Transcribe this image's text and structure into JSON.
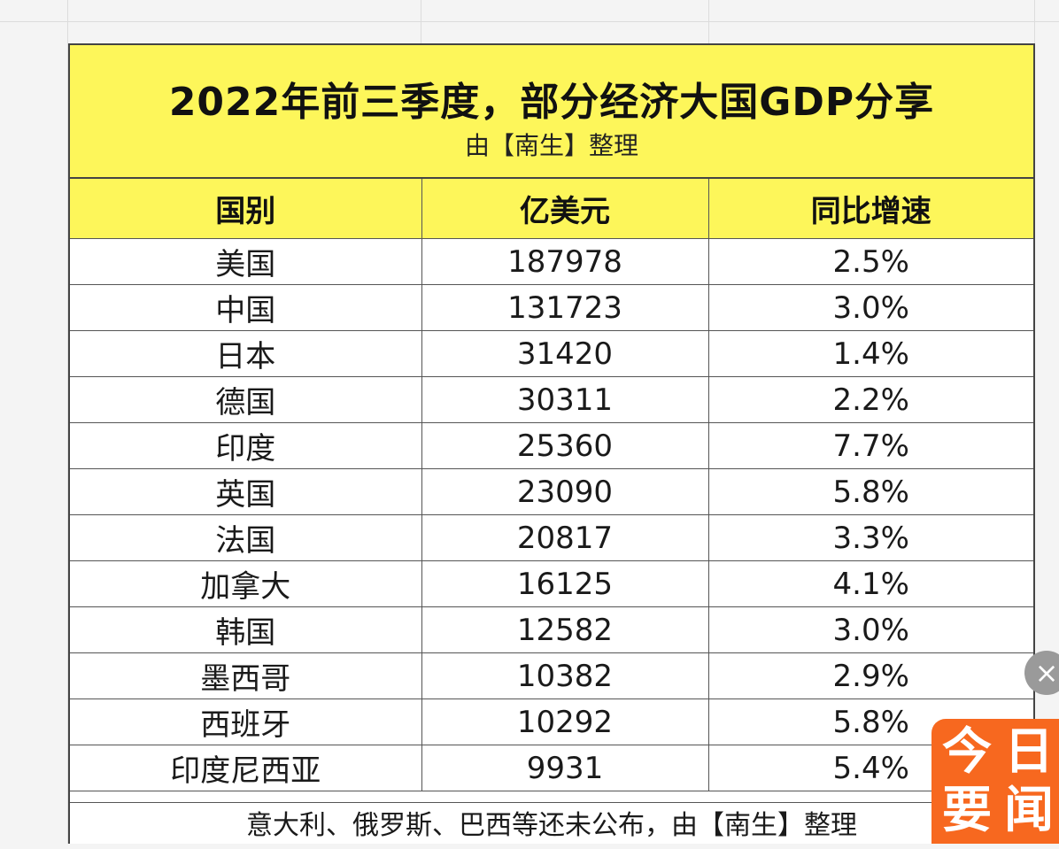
{
  "title": "2022年前三季度，部分经济大国GDP分享",
  "subtitle": "由【南生】整理",
  "columns": [
    "国别",
    "亿美元",
    "同比增速"
  ],
  "rows": [
    [
      "美国",
      "187978",
      "2.5%"
    ],
    [
      "中国",
      "131723",
      "3.0%"
    ],
    [
      "日本",
      "31420",
      "1.4%"
    ],
    [
      "德国",
      "30311",
      "2.2%"
    ],
    [
      "印度",
      "25360",
      "7.7%"
    ],
    [
      "英国",
      "23090",
      "5.8%"
    ],
    [
      "法国",
      "20817",
      "3.3%"
    ],
    [
      "加拿大",
      "16125",
      "4.1%"
    ],
    [
      "韩国",
      "12582",
      "3.0%"
    ],
    [
      "墨西哥",
      "10382",
      "2.9%"
    ],
    [
      "西班牙",
      "10292",
      "5.8%"
    ],
    [
      "印度尼西亚",
      "9931",
      "5.4%"
    ]
  ],
  "footnote": "意大利、俄罗斯、巴西等还未公布，由【南生】整理",
  "overlay": {
    "close_icon": "×",
    "logo_chars": [
      "今",
      "日",
      "要",
      "闻"
    ]
  },
  "colors": {
    "header_yellow": "#fdf65a",
    "logo_orange": "#f7681f"
  }
}
